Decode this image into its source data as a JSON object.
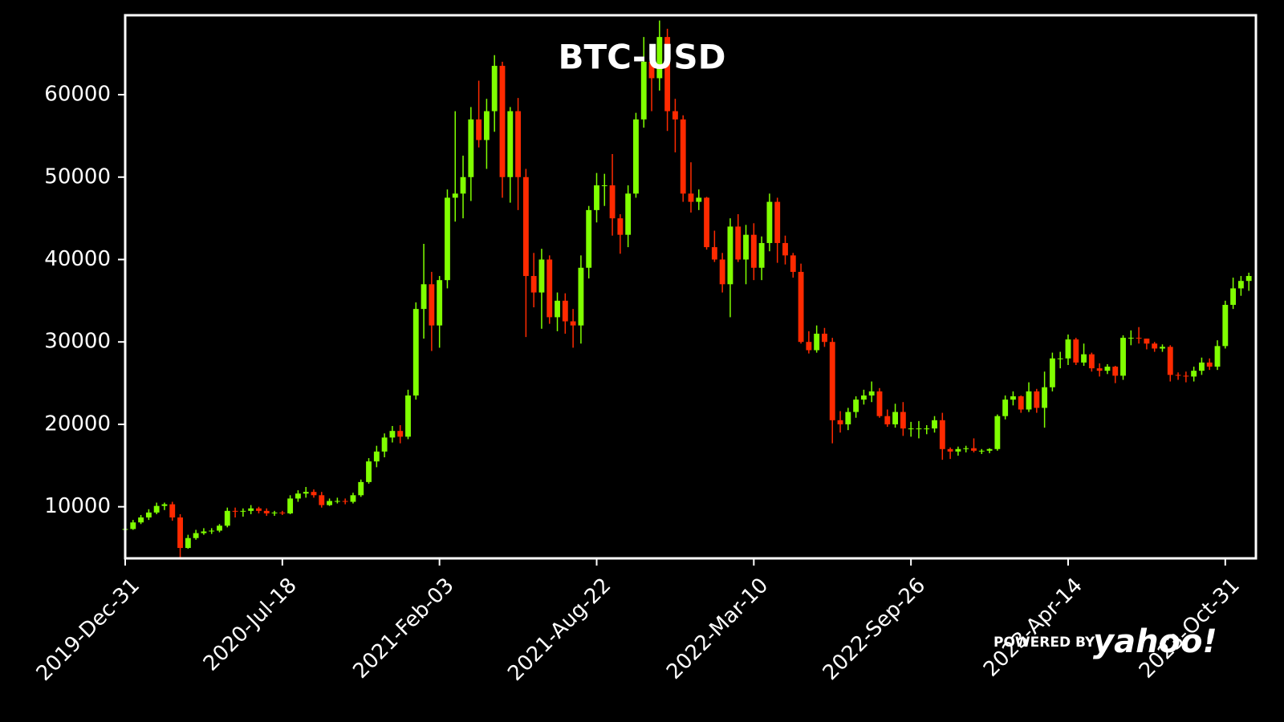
{
  "chart_data": {
    "type": "candlestick",
    "title": "BTC-USD",
    "watermark": [
      "POWERED BY",
      "yahoo!"
    ],
    "up_color": "#80ff00",
    "down_color": "#ff2a00",
    "xlim": [
      0,
      1439
    ],
    "ylim": [
      3740,
      69640
    ],
    "xticks": [
      {
        "value": 0,
        "label": "2019-Dec-31"
      },
      {
        "value": 200,
        "label": "2020-Jul-18"
      },
      {
        "value": 400,
        "label": "2021-Feb-03"
      },
      {
        "value": 600,
        "label": "2021-Aug-22"
      },
      {
        "value": 800,
        "label": "2022-Mar-10"
      },
      {
        "value": 1000,
        "label": "2022-Sep-26"
      },
      {
        "value": 1200,
        "label": "2023-Apr-14"
      },
      {
        "value": 1400,
        "label": "2023-Oct-31"
      }
    ],
    "yticks": [
      10000,
      20000,
      30000,
      40000,
      50000,
      60000
    ],
    "x": [
      0,
      10,
      20,
      30,
      40,
      50,
      60,
      70,
      80,
      90,
      100,
      110,
      120,
      130,
      140,
      150,
      160,
      170,
      180,
      190,
      200,
      210,
      220,
      230,
      240,
      250,
      260,
      270,
      280,
      290,
      300,
      310,
      320,
      330,
      340,
      350,
      360,
      370,
      380,
      390,
      400,
      410,
      420,
      430,
      440,
      450,
      460,
      470,
      480,
      490,
      500,
      510,
      520,
      530,
      540,
      550,
      560,
      570,
      580,
      590,
      600,
      610,
      620,
      630,
      640,
      650,
      660,
      670,
      680,
      690,
      700,
      710,
      720,
      730,
      740,
      750,
      760,
      770,
      780,
      790,
      800,
      810,
      820,
      830,
      840,
      850,
      860,
      870,
      880,
      890,
      900,
      910,
      920,
      930,
      940,
      950,
      960,
      970,
      980,
      990,
      1000,
      1010,
      1020,
      1030,
      1040,
      1050,
      1060,
      1070,
      1080,
      1090,
      1100,
      1110,
      1120,
      1130,
      1140,
      1150,
      1160,
      1170,
      1180,
      1190,
      1200,
      1210,
      1220,
      1230,
      1240,
      1250,
      1260,
      1270,
      1280,
      1290,
      1300,
      1310,
      1320,
      1330,
      1340,
      1350,
      1360,
      1370,
      1380,
      1390,
      1400,
      1410,
      1420,
      1430
    ],
    "open": [
      7200,
      7300,
      8100,
      8700,
      9300,
      10100,
      10300,
      8700,
      5000,
      6200,
      6800,
      7000,
      7100,
      7700,
      9500,
      9400,
      9500,
      9800,
      9500,
      9200,
      9300,
      9200,
      11000,
      11600,
      11800,
      11400,
      10200,
      10700,
      10700,
      10600,
      11400,
      13000,
      15500,
      16700,
      18400,
      19200,
      18500,
      23500,
      34000,
      37000,
      32000,
      37500,
      47500,
      48000,
      50000,
      57000,
      54500,
      58000,
      63500,
      50000,
      58000,
      50000,
      38000,
      36000,
      40000,
      33000,
      35000,
      32500,
      32000,
      39000,
      46000,
      49000,
      49000,
      45000,
      43000,
      48000,
      57000,
      64000,
      62000,
      67000,
      58000,
      57000,
      48000,
      47000,
      47500,
      41500,
      40000,
      37000,
      44000,
      40000,
      43000,
      39000,
      42000,
      47000,
      42000,
      40500,
      38500,
      30000,
      29000,
      31000,
      30000,
      20500,
      20000,
      21500,
      23000,
      23500,
      24000,
      21000,
      20000,
      21500,
      19500,
      19500,
      19500,
      19500,
      20500,
      17000,
      16700,
      17000,
      17100,
      16800,
      16800,
      17000,
      21000,
      23000,
      23400,
      21800,
      24000,
      22000,
      24500,
      28000,
      28000,
      30300,
      27500,
      28500,
      26800,
      26500,
      27000,
      25900,
      30500,
      30500,
      30400,
      29800,
      29200,
      29400,
      26000,
      25900,
      25800,
      26500,
      27500,
      27000,
      29500,
      34500,
      36500,
      37400
    ],
    "high": [
      7600,
      8400,
      9000,
      9700,
      10500,
      10500,
      10600,
      9100,
      6600,
      7200,
      7400,
      7400,
      7900,
      9900,
      9900,
      9800,
      10200,
      10000,
      9800,
      9500,
      9500,
      11400,
      12000,
      12400,
      12100,
      11800,
      11000,
      11100,
      11000,
      11700,
      13300,
      15900,
      17400,
      18900,
      19800,
      19900,
      24200,
      34800,
      41900,
      38500,
      38000,
      48500,
      58000,
      52600,
      58500,
      61700,
      59500,
      64800,
      64000,
      58500,
      59600,
      51000,
      40800,
      41300,
      40500,
      36000,
      35900,
      34000,
      40500,
      46500,
      50500,
      50400,
      52800,
      45500,
      49000,
      57800,
      67000,
      65000,
      69000,
      68000,
      59500,
      57500,
      51800,
      48500,
      47600,
      43500,
      40800,
      45000,
      45500,
      44200,
      44400,
      42800,
      48000,
      47500,
      42900,
      40800,
      39500,
      31300,
      32000,
      31700,
      30500,
      21600,
      22000,
      23400,
      24200,
      25200,
      24400,
      21800,
      22500,
      22700,
      20300,
      20400,
      19900,
      21000,
      21400,
      17200,
      17300,
      17400,
      18300,
      17000,
      17100,
      21200,
      23500,
      24000,
      23500,
      25100,
      24300,
      26400,
      28700,
      28800,
      30900,
      30500,
      29800,
      28700,
      27400,
      27300,
      27100,
      30800,
      31400,
      31800,
      30400,
      30000,
      29700,
      29600,
      26300,
      26400,
      27000,
      28100,
      28000,
      30200,
      35000,
      37800,
      38000,
      38400
    ],
    "low": [
      6900,
      7200,
      7900,
      8400,
      9100,
      9600,
      8300,
      3800,
      4900,
      6000,
      6600,
      6700,
      6900,
      7500,
      8700,
      8800,
      9100,
      9200,
      8900,
      8900,
      9000,
      9100,
      10600,
      11100,
      11100,
      9900,
      10100,
      10400,
      10300,
      10400,
      11200,
      12800,
      14800,
      16000,
      17800,
      17700,
      18200,
      23000,
      30400,
      28900,
      29300,
      36500,
      44600,
      45000,
      47100,
      53600,
      51000,
      55500,
      47500,
      46900,
      46000,
      30600,
      34200,
      31600,
      32200,
      31300,
      31000,
      29300,
      29800,
      37700,
      44500,
      46500,
      42900,
      40700,
      41500,
      47500,
      56000,
      58000,
      60500,
      55600,
      53000,
      47000,
      45700,
      46000,
      41200,
      39700,
      36000,
      33000,
      39700,
      37000,
      37500,
      37500,
      41000,
      39600,
      39400,
      37800,
      29800,
      28600,
      28700,
      29400,
      17700,
      19000,
      19300,
      20800,
      22400,
      22700,
      20800,
      19700,
      19600,
      18600,
      18500,
      18300,
      18800,
      19000,
      15700,
      15800,
      16200,
      16600,
      16600,
      16400,
      16500,
      16800,
      20600,
      22300,
      21400,
      21500,
      21400,
      19600,
      24000,
      26800,
      27200,
      27200,
      27100,
      26400,
      25800,
      26100,
      25000,
      25400,
      29600,
      29800,
      29100,
      28800,
      28800,
      25200,
      25400,
      25100,
      25200,
      26000,
      26600,
      26600,
      29200,
      34000,
      35600,
      36200
    ],
    "close": [
      7300,
      8100,
      8700,
      9300,
      10100,
      10300,
      8700,
      5000,
      6200,
      6800,
      7000,
      7100,
      7700,
      9500,
      9400,
      9500,
      9800,
      9500,
      9200,
      9300,
      9200,
      11000,
      11600,
      11800,
      11400,
      10200,
      10700,
      10700,
      10600,
      11400,
      13000,
      15500,
      16700,
      18400,
      19200,
      18500,
      23500,
      34000,
      37000,
      32000,
      37500,
      47500,
      48000,
      50000,
      57000,
      54500,
      58000,
      63500,
      50000,
      58000,
      50000,
      38000,
      36000,
      40000,
      33000,
      35000,
      32500,
      32000,
      39000,
      46000,
      49000,
      49000,
      45000,
      43000,
      48000,
      57000,
      64000,
      62000,
      67000,
      58000,
      57000,
      48000,
      47000,
      47500,
      41500,
      40000,
      37000,
      44000,
      40000,
      43000,
      39000,
      42000,
      47000,
      42000,
      40500,
      38500,
      30000,
      29000,
      31000,
      30000,
      20500,
      20000,
      21500,
      23000,
      23500,
      24000,
      21000,
      20000,
      21500,
      19500,
      19500,
      19500,
      19500,
      20500,
      17000,
      16700,
      17000,
      17100,
      16800,
      16800,
      17000,
      21000,
      23000,
      23400,
      21800,
      24000,
      22000,
      24500,
      28000,
      28000,
      30300,
      27500,
      28500,
      26800,
      26500,
      27000,
      25900,
      30500,
      30500,
      30400,
      29800,
      29200,
      29400,
      26000,
      25900,
      25800,
      26500,
      27500,
      27000,
      29500,
      34500,
      36500,
      37400,
      38000
    ]
  }
}
